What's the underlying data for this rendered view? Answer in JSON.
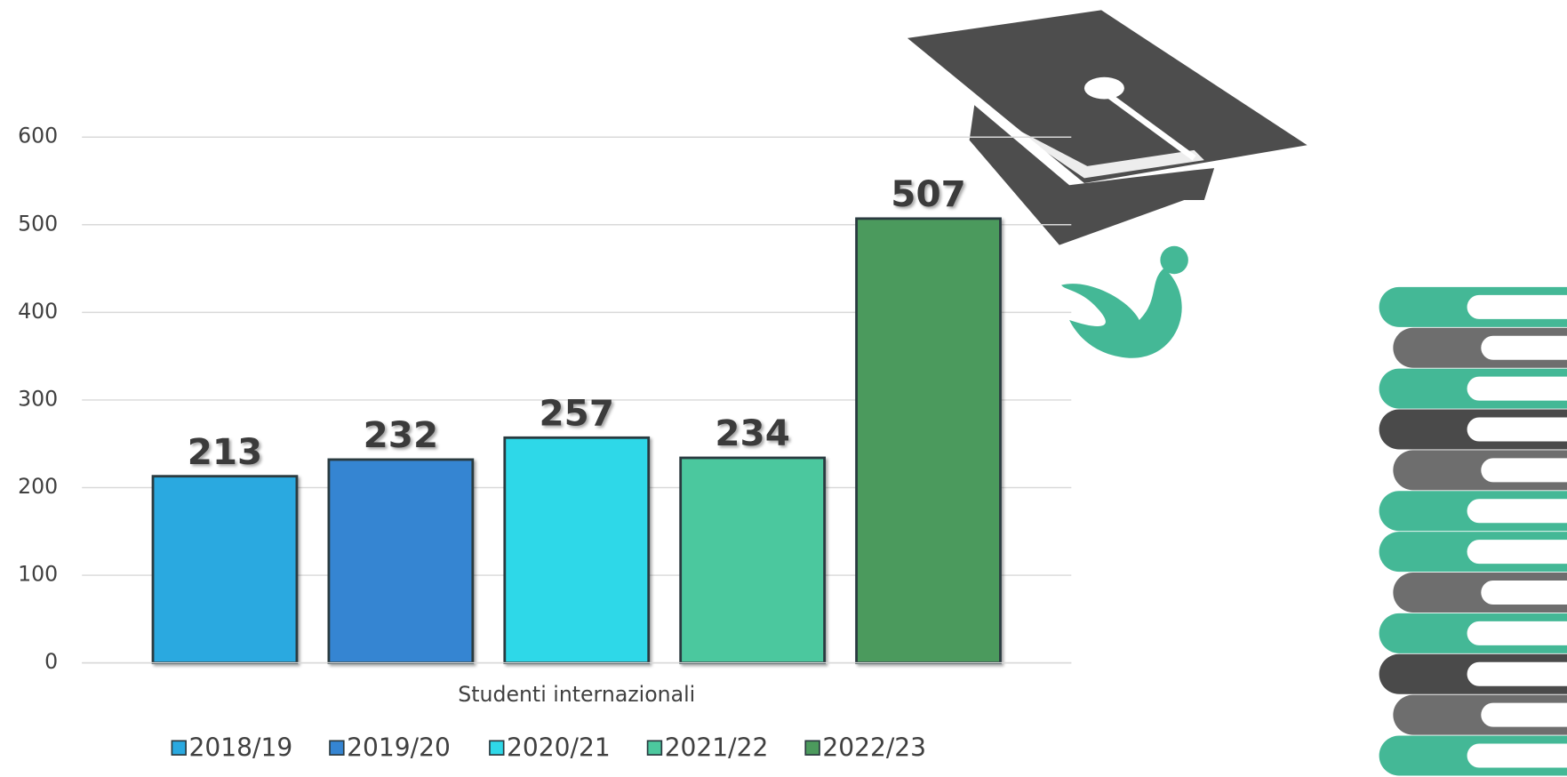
{
  "chart_data": {
    "type": "bar",
    "categories": [
      "Studenti internazionali"
    ],
    "series": [
      {
        "name": "2018/19",
        "color": "#29a9e0",
        "values": [
          213
        ]
      },
      {
        "name": "2019/20",
        "color": "#3585d2",
        "values": [
          232
        ]
      },
      {
        "name": "2020/21",
        "color": "#2fd8e8",
        "values": [
          257
        ]
      },
      {
        "name": "2021/22",
        "color": "#4cc89e",
        "values": [
          234
        ]
      },
      {
        "name": "2022/23",
        "color": "#4c9a5d",
        "values": [
          507
        ]
      }
    ],
    "ylim": [
      0,
      600
    ],
    "yticks": [
      0,
      100,
      200,
      300,
      400,
      500,
      600
    ],
    "grid": true,
    "legend": "bottom"
  }
}
